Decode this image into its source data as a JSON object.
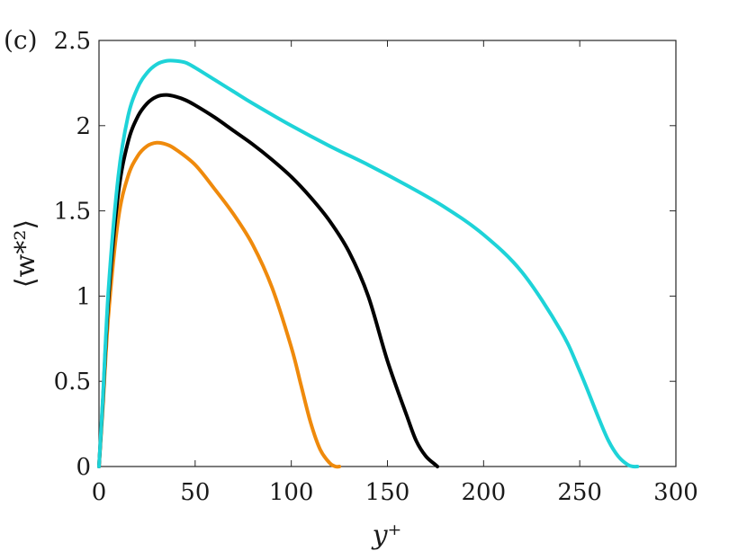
{
  "chart_data": {
    "type": "line",
    "panel_label": "(c)",
    "xlabel": "y⁺",
    "ylabel": "⟨w*²⟩",
    "xlim": [
      0,
      300
    ],
    "ylim": [
      0,
      2.5
    ],
    "xticks": [
      0,
      50,
      100,
      150,
      200,
      250,
      300
    ],
    "yticks": [
      0,
      0.5,
      1,
      1.5,
      2,
      2.5
    ],
    "x_tick_labels": [
      "0",
      "50",
      "100",
      "150",
      "200",
      "250",
      "300"
    ],
    "y_tick_labels": [
      "0",
      "0.5",
      "1",
      "1.5",
      "2",
      "2.5"
    ],
    "grid": false,
    "series": [
      {
        "color": "#ef8a0c",
        "x": [
          0,
          2,
          5,
          10,
          15,
          20,
          25,
          30,
          35,
          40,
          50,
          60,
          70,
          80,
          90,
          100,
          105,
          110,
          115,
          120,
          123,
          125
        ],
        "y": [
          0,
          0.35,
          0.9,
          1.45,
          1.7,
          1.82,
          1.88,
          1.9,
          1.89,
          1.86,
          1.77,
          1.63,
          1.48,
          1.3,
          1.05,
          0.7,
          0.48,
          0.26,
          0.1,
          0.02,
          0.0,
          0.0
        ]
      },
      {
        "color": "#000000",
        "x": [
          0,
          2,
          5,
          10,
          15,
          20,
          25,
          30,
          35,
          40,
          45,
          50,
          60,
          70,
          80,
          90,
          100,
          110,
          120,
          130,
          140,
          150,
          160,
          165,
          170,
          175,
          176
        ],
        "y": [
          0,
          0.38,
          1.0,
          1.6,
          1.9,
          2.05,
          2.13,
          2.17,
          2.18,
          2.17,
          2.15,
          2.12,
          2.05,
          1.97,
          1.89,
          1.8,
          1.7,
          1.58,
          1.44,
          1.26,
          1.0,
          0.62,
          0.3,
          0.15,
          0.06,
          0.01,
          0.0
        ]
      },
      {
        "color": "#1ed3d8",
        "x": [
          0,
          2,
          5,
          10,
          15,
          20,
          25,
          30,
          35,
          40,
          45,
          50,
          60,
          70,
          80,
          100,
          120,
          140,
          160,
          180,
          200,
          220,
          240,
          250,
          260,
          265,
          270,
          275,
          278,
          280
        ],
        "y": [
          0,
          0.4,
          1.05,
          1.7,
          2.05,
          2.22,
          2.31,
          2.36,
          2.38,
          2.38,
          2.37,
          2.34,
          2.27,
          2.2,
          2.13,
          2.0,
          1.88,
          1.77,
          1.65,
          1.52,
          1.36,
          1.14,
          0.8,
          0.56,
          0.28,
          0.15,
          0.06,
          0.01,
          0.0,
          0.0
        ]
      }
    ]
  }
}
